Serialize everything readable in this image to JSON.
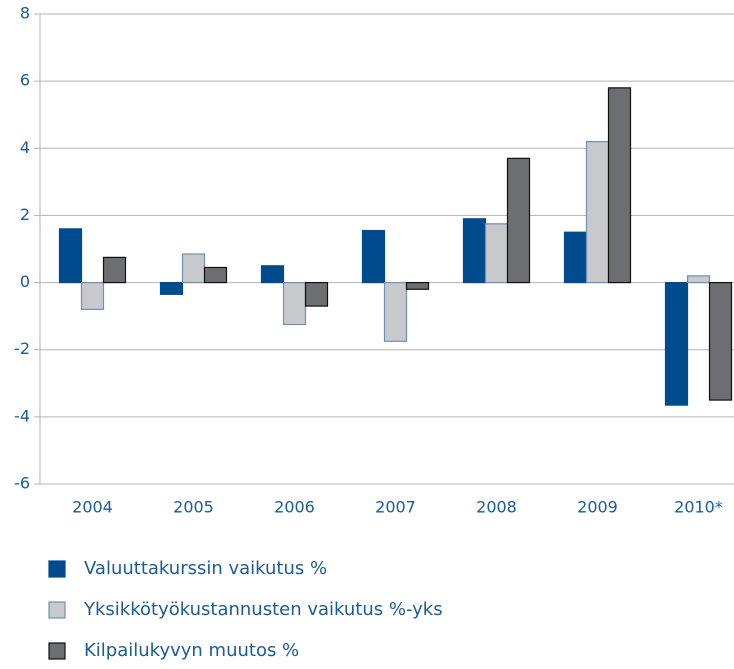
{
  "chart_data": {
    "type": "bar",
    "categories": [
      "2004",
      "2005",
      "2006",
      "2007",
      "2008",
      "2009",
      "2010*"
    ],
    "series": [
      {
        "name": "Valuuttakurssin vaikutus %",
        "color": "#004b8d",
        "stroke": "#004b8d",
        "values": [
          1.6,
          -0.35,
          0.5,
          1.55,
          1.9,
          1.5,
          -3.65
        ]
      },
      {
        "name": "Yksikkötyökustannusten vaikutus %-yks",
        "color": "#c8c9cc",
        "stroke": "#6f8fb5",
        "values": [
          -0.8,
          0.85,
          -1.25,
          -1.75,
          1.75,
          4.2,
          0.2
        ]
      },
      {
        "name": "Kilpailukyvyn muutos %",
        "color": "#6d6e71",
        "stroke": "#111111",
        "values": [
          0.75,
          0.45,
          -0.7,
          -0.2,
          3.7,
          5.8,
          -3.5
        ]
      }
    ],
    "ylim": [
      -6,
      8
    ],
    "yticks": [
      -6,
      -4,
      -2,
      0,
      2,
      4,
      6,
      8
    ],
    "grid": true
  }
}
